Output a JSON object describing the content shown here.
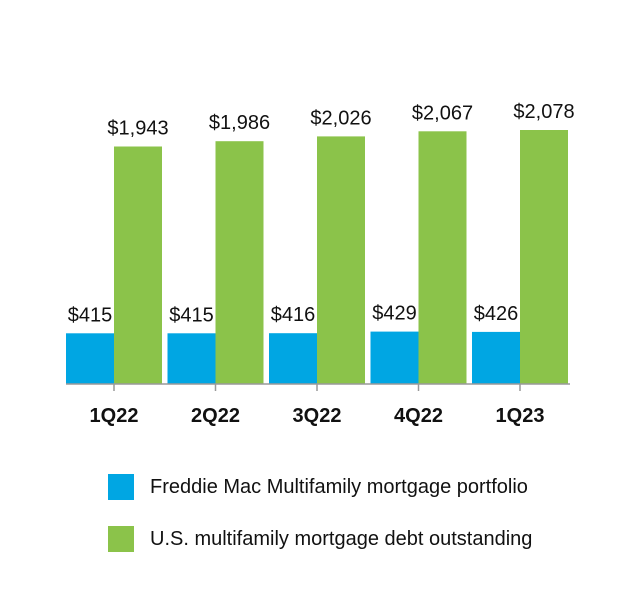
{
  "chart_data": {
    "type": "bar",
    "categories": [
      "1Q22",
      "2Q22",
      "3Q22",
      "4Q22",
      "1Q23"
    ],
    "series": [
      {
        "name": "Freddie Mac Multifamily mortgage portfolio",
        "color": "#00A6E3",
        "values": [
          415,
          415,
          416,
          429,
          426
        ],
        "labels": [
          "$415",
          "$415",
          "$416",
          "$429",
          "$426"
        ]
      },
      {
        "name": "U.S. multifamily mortgage debt outstanding",
        "color": "#8BC34A",
        "values": [
          1943,
          1986,
          2026,
          2067,
          2078
        ],
        "labels": [
          "$1,943",
          "$1,986",
          "$2,026",
          "$2,067",
          "$2,078"
        ]
      }
    ],
    "ylim": [
      0,
      2078
    ],
    "grid": false,
    "legend_position": "bottom"
  }
}
